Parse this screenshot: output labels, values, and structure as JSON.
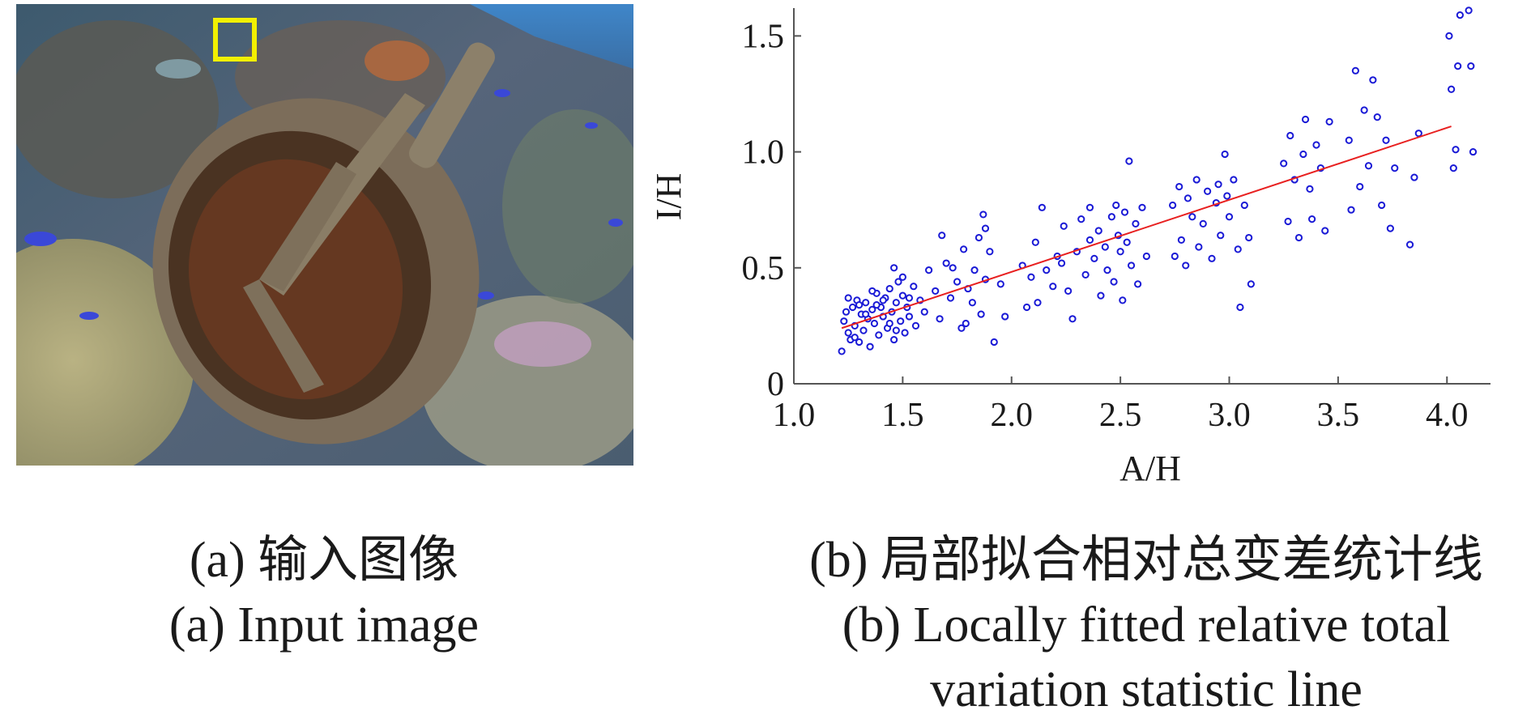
{
  "panel_a": {
    "caption_zh": "(a) 输入图像",
    "caption_en": "(a) Input image",
    "highlight_color": "#f2f000"
  },
  "panel_b": {
    "caption_zh": "(b) 局部拟合相对总变差统计线",
    "caption_en_line1": "(b) Locally fitted relative total",
    "caption_en_line2": "variation statistic line"
  },
  "chart_data": {
    "type": "scatter",
    "xlabel": "A/H",
    "ylabel": "I/H",
    "xlim": [
      1.0,
      4.2
    ],
    "ylim": [
      0,
      1.62
    ],
    "xticks": [
      "1.0",
      "1.5",
      "2.0",
      "2.5",
      "3.0",
      "3.5",
      "4.0"
    ],
    "yticks": [
      "0",
      "0.5",
      "1.0",
      "1.5"
    ],
    "grid": false,
    "marker_color": "#1a1ad6",
    "fit_line_color": "#e82020",
    "fit_line": {
      "x": [
        1.22,
        4.02
      ],
      "y": [
        0.24,
        1.11
      ]
    },
    "points": [
      [
        1.22,
        0.14
      ],
      [
        1.23,
        0.27
      ],
      [
        1.24,
        0.31
      ],
      [
        1.25,
        0.22
      ],
      [
        1.26,
        0.19
      ],
      [
        1.27,
        0.33
      ],
      [
        1.28,
        0.25
      ],
      [
        1.29,
        0.36
      ],
      [
        1.3,
        0.18
      ],
      [
        1.31,
        0.3
      ],
      [
        1.32,
        0.23
      ],
      [
        1.33,
        0.35
      ],
      [
        1.34,
        0.28
      ],
      [
        1.35,
        0.16
      ],
      [
        1.36,
        0.32
      ],
      [
        1.37,
        0.26
      ],
      [
        1.38,
        0.39
      ],
      [
        1.39,
        0.21
      ],
      [
        1.4,
        0.33
      ],
      [
        1.41,
        0.29
      ],
      [
        1.42,
        0.37
      ],
      [
        1.43,
        0.24
      ],
      [
        1.44,
        0.41
      ],
      [
        1.45,
        0.31
      ],
      [
        1.46,
        0.19
      ],
      [
        1.47,
        0.35
      ],
      [
        1.48,
        0.44
      ],
      [
        1.49,
        0.27
      ],
      [
        1.5,
        0.38
      ],
      [
        1.51,
        0.22
      ],
      [
        1.52,
        0.33
      ],
      [
        1.53,
        0.29
      ],
      [
        1.55,
        0.42
      ],
      [
        1.56,
        0.25
      ],
      [
        1.58,
        0.36
      ],
      [
        1.6,
        0.31
      ],
      [
        1.25,
        0.37
      ],
      [
        1.28,
        0.2
      ],
      [
        1.33,
        0.3
      ],
      [
        1.36,
        0.4
      ],
      [
        1.41,
        0.36
      ],
      [
        1.44,
        0.26
      ],
      [
        1.46,
        0.5
      ],
      [
        1.5,
        0.46
      ],
      [
        1.53,
        0.37
      ],
      [
        1.47,
        0.23
      ],
      [
        1.3,
        0.34
      ],
      [
        1.38,
        0.34
      ],
      [
        1.62,
        0.49
      ],
      [
        1.65,
        0.4
      ],
      [
        1.67,
        0.28
      ],
      [
        1.7,
        0.52
      ],
      [
        1.72,
        0.37
      ],
      [
        1.75,
        0.44
      ],
      [
        1.77,
        0.24
      ],
      [
        1.78,
        0.58
      ],
      [
        1.8,
        0.41
      ],
      [
        1.82,
        0.35
      ],
      [
        1.83,
        0.49
      ],
      [
        1.85,
        0.63
      ],
      [
        1.86,
        0.3
      ],
      [
        1.87,
        0.73
      ],
      [
        1.88,
        0.45
      ],
      [
        1.9,
        0.57
      ],
      [
        1.92,
        0.18
      ],
      [
        1.95,
        0.43
      ],
      [
        1.97,
        0.29
      ],
      [
        1.68,
        0.64
      ],
      [
        1.73,
        0.5
      ],
      [
        1.88,
        0.67
      ],
      [
        1.79,
        0.26
      ],
      [
        2.05,
        0.51
      ],
      [
        2.07,
        0.33
      ],
      [
        2.09,
        0.46
      ],
      [
        2.11,
        0.61
      ],
      [
        2.12,
        0.35
      ],
      [
        2.14,
        0.76
      ],
      [
        2.16,
        0.49
      ],
      [
        2.19,
        0.42
      ],
      [
        2.21,
        0.55
      ],
      [
        2.24,
        0.68
      ],
      [
        2.26,
        0.4
      ],
      [
        2.28,
        0.28
      ],
      [
        2.3,
        0.57
      ],
      [
        2.32,
        0.71
      ],
      [
        2.34,
        0.47
      ],
      [
        2.36,
        0.62
      ],
      [
        2.38,
        0.54
      ],
      [
        2.4,
        0.66
      ],
      [
        2.41,
        0.38
      ],
      [
        2.43,
        0.59
      ],
      [
        2.44,
        0.49
      ],
      [
        2.46,
        0.72
      ],
      [
        2.47,
        0.44
      ],
      [
        2.49,
        0.64
      ],
      [
        2.5,
        0.57
      ],
      [
        2.51,
        0.36
      ],
      [
        2.52,
        0.74
      ],
      [
        2.53,
        0.61
      ],
      [
        2.54,
        0.96
      ],
      [
        2.55,
        0.51
      ],
      [
        2.57,
        0.69
      ],
      [
        2.58,
        0.43
      ],
      [
        2.6,
        0.76
      ],
      [
        2.62,
        0.55
      ],
      [
        2.36,
        0.76
      ],
      [
        2.23,
        0.52
      ],
      [
        2.48,
        0.77
      ],
      [
        2.74,
        0.77
      ],
      [
        2.75,
        0.55
      ],
      [
        2.77,
        0.85
      ],
      [
        2.78,
        0.62
      ],
      [
        2.8,
        0.51
      ],
      [
        2.81,
        0.8
      ],
      [
        2.83,
        0.72
      ],
      [
        2.85,
        0.88
      ],
      [
        2.86,
        0.59
      ],
      [
        2.88,
        0.69
      ],
      [
        2.9,
        0.83
      ],
      [
        2.92,
        0.54
      ],
      [
        2.94,
        0.78
      ],
      [
        2.96,
        0.64
      ],
      [
        2.98,
        0.99
      ],
      [
        3.0,
        0.72
      ],
      [
        3.02,
        0.88
      ],
      [
        3.04,
        0.58
      ],
      [
        3.05,
        0.33
      ],
      [
        3.07,
        0.77
      ],
      [
        3.09,
        0.63
      ],
      [
        3.1,
        0.43
      ],
      [
        2.95,
        0.86
      ],
      [
        2.99,
        0.81
      ],
      [
        3.25,
        0.95
      ],
      [
        3.27,
        0.7
      ],
      [
        3.28,
        1.07
      ],
      [
        3.3,
        0.88
      ],
      [
        3.32,
        0.63
      ],
      [
        3.34,
        0.99
      ],
      [
        3.35,
        1.14
      ],
      [
        3.37,
        0.84
      ],
      [
        3.38,
        0.71
      ],
      [
        3.4,
        1.03
      ],
      [
        3.42,
        0.93
      ],
      [
        3.44,
        0.66
      ],
      [
        3.46,
        1.13
      ],
      [
        3.55,
        1.05
      ],
      [
        3.56,
        0.75
      ],
      [
        3.58,
        1.35
      ],
      [
        3.6,
        0.85
      ],
      [
        3.62,
        1.18
      ],
      [
        3.64,
        0.94
      ],
      [
        3.66,
        1.31
      ],
      [
        3.68,
        1.15
      ],
      [
        3.7,
        0.77
      ],
      [
        3.72,
        1.05
      ],
      [
        3.74,
        0.67
      ],
      [
        3.76,
        0.93
      ],
      [
        3.83,
        0.6
      ],
      [
        3.85,
        0.89
      ],
      [
        3.87,
        1.08
      ],
      [
        4.01,
        1.5
      ],
      [
        4.02,
        1.27
      ],
      [
        4.03,
        0.93
      ],
      [
        4.04,
        1.01
      ],
      [
        4.05,
        1.37
      ],
      [
        4.06,
        1.59
      ],
      [
        4.1,
        1.61
      ],
      [
        4.11,
        1.37
      ],
      [
        4.12,
        1.0
      ]
    ]
  }
}
